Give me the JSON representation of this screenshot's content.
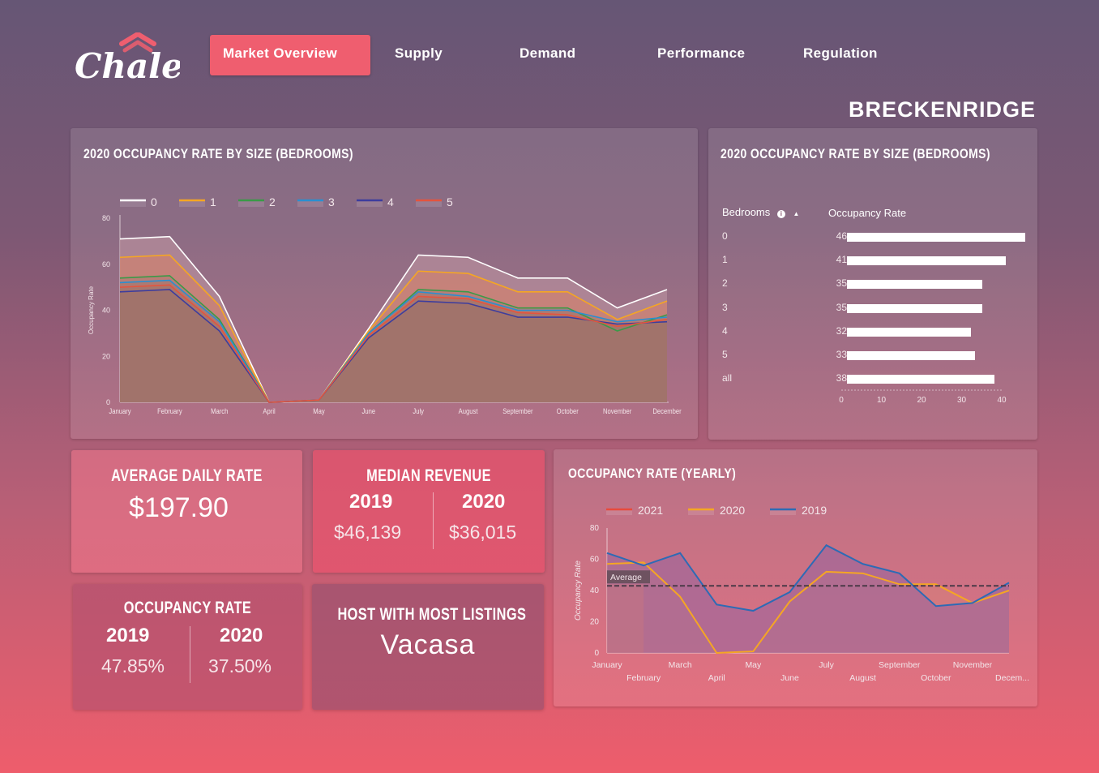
{
  "brand": {
    "name": "Chalet"
  },
  "nav": {
    "items": [
      {
        "label": "Market Overview",
        "active": true
      },
      {
        "label": "Supply",
        "active": false
      },
      {
        "label": "Demand",
        "active": false
      },
      {
        "label": "Performance",
        "active": false
      },
      {
        "label": "Regulation",
        "active": false
      }
    ]
  },
  "location": "BRECKENRIDGE",
  "colors": {
    "accent": "#ef5e6f",
    "series_colors": [
      "#ffffff",
      "#f5a623",
      "#3a9a48",
      "#2a8fd0",
      "#3d3d9e",
      "#e4543e"
    ]
  },
  "occupancy_by_size_chart": {
    "title": "2020 OCCUPANCY RATE BY SIZE (BEDROOMS)",
    "ylabel": "Occupancy Rate",
    "chart_data": {
      "type": "area",
      "x": [
        "January",
        "February",
        "March",
        "April",
        "May",
        "June",
        "July",
        "August",
        "September",
        "October",
        "November",
        "December"
      ],
      "ylim": [
        0,
        80
      ],
      "yticks": [
        0,
        20,
        40,
        60,
        80
      ],
      "grid": false,
      "legend": "top-left",
      "series": [
        {
          "name": "0",
          "values": [
            71,
            72,
            46,
            0,
            1,
            32,
            64,
            63,
            54,
            54,
            41,
            49
          ]
        },
        {
          "name": "1",
          "values": [
            63,
            64,
            42,
            0,
            1,
            31,
            57,
            56,
            48,
            48,
            36,
            44
          ]
        },
        {
          "name": "2",
          "values": [
            54,
            55,
            36,
            0,
            1,
            30,
            49,
            48,
            41,
            41,
            31,
            38
          ]
        },
        {
          "name": "3",
          "values": [
            52,
            53,
            35,
            0,
            1,
            30,
            48,
            46,
            40,
            40,
            35,
            37
          ]
        },
        {
          "name": "4",
          "values": [
            48,
            49,
            31,
            0,
            1,
            28,
            44,
            43,
            37,
            37,
            34,
            35
          ]
        },
        {
          "name": "5",
          "values": [
            50,
            51,
            33,
            0,
            1,
            29,
            46,
            45,
            39,
            38,
            33,
            36
          ]
        }
      ]
    }
  },
  "occupancy_table": {
    "title": "2020 OCCUPANCY RATE BY SIZE (BEDROOMS)",
    "col_bedrooms": "Bedrooms",
    "col_rate": "Occupancy Rate",
    "sort_icon": "info-icon",
    "chart_data": {
      "type": "bar",
      "categories": [
        "0",
        "1",
        "2",
        "3",
        "4",
        "5",
        "all"
      ],
      "values": [
        46,
        41,
        35,
        35,
        32,
        33,
        38
      ],
      "xticks": [
        0,
        10,
        20,
        30,
        40
      ],
      "xlim": [
        0,
        46
      ]
    }
  },
  "adr_card": {
    "title": "AVERAGE DAILY RATE",
    "value": "$197.90"
  },
  "median_revenue_card": {
    "title": "MEDIAN REVENUE",
    "year_a": "2019",
    "value_a": "$46,139",
    "year_b": "2020",
    "value_b": "$36,015"
  },
  "occupancy_card": {
    "title": "OCCUPANCY RATE",
    "year_a": "2019",
    "value_a": "47.85%",
    "year_b": "2020",
    "value_b": "37.50%"
  },
  "host_card": {
    "title": "HOST WITH MOST LISTINGS",
    "value": "Vacasa"
  },
  "yearly_chart": {
    "title": "OCCUPANCY RATE (YEARLY)",
    "ylabel": "Occupancy Rate",
    "average_label": "Average",
    "chart_data": {
      "type": "area",
      "x": [
        "January",
        "February",
        "March",
        "April",
        "May",
        "June",
        "July",
        "August",
        "September",
        "October",
        "November",
        "December"
      ],
      "x_tick_labels": [
        "January",
        "February",
        "March",
        "April",
        "May",
        "June",
        "July",
        "August",
        "September",
        "October",
        "November",
        "Decem..."
      ],
      "ylim": [
        0,
        80
      ],
      "yticks": [
        0,
        20,
        40,
        60,
        80
      ],
      "legend": "top-left",
      "average": 43,
      "series": [
        {
          "name": "2021",
          "values": [
            null,
            null,
            null,
            null,
            null,
            null,
            null,
            null,
            null,
            null,
            null,
            null
          ]
        },
        {
          "name": "2020",
          "values": [
            57,
            58,
            36,
            0,
            1,
            33,
            52,
            51,
            44,
            44,
            32,
            40
          ]
        },
        {
          "name": "2019",
          "values": [
            64,
            56,
            64,
            31,
            27,
            39,
            69,
            57,
            51,
            30,
            32,
            45
          ]
        }
      ],
      "series_colors": [
        "#e84a3c",
        "#f5a623",
        "#2d6bb5"
      ]
    }
  }
}
